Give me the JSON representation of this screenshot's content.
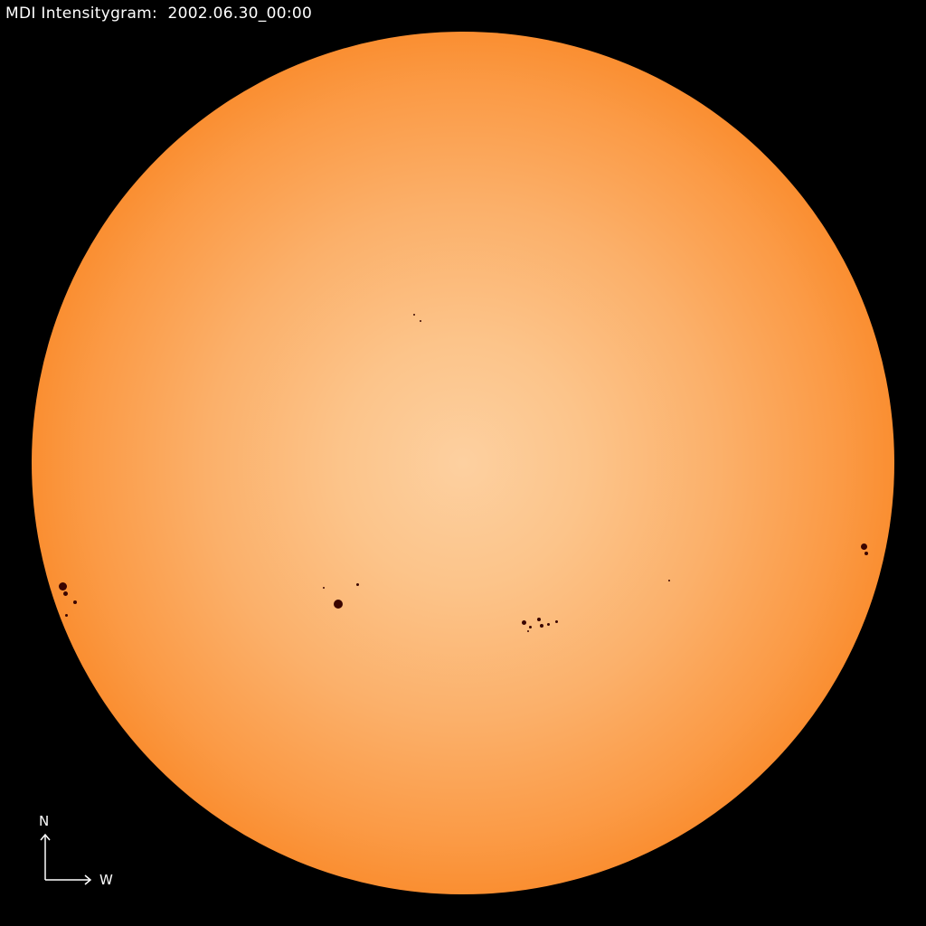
{
  "title": "MDI Intensitygram:  2002.06.30_00:00",
  "compass": {
    "north": "N",
    "west": "W"
  },
  "colors": {
    "background": "#000000",
    "disk_center": "#fdd0a0",
    "disk_mid": "#fb9a45",
    "limb": "#8a1400",
    "sunspot": "#3a0500"
  }
}
